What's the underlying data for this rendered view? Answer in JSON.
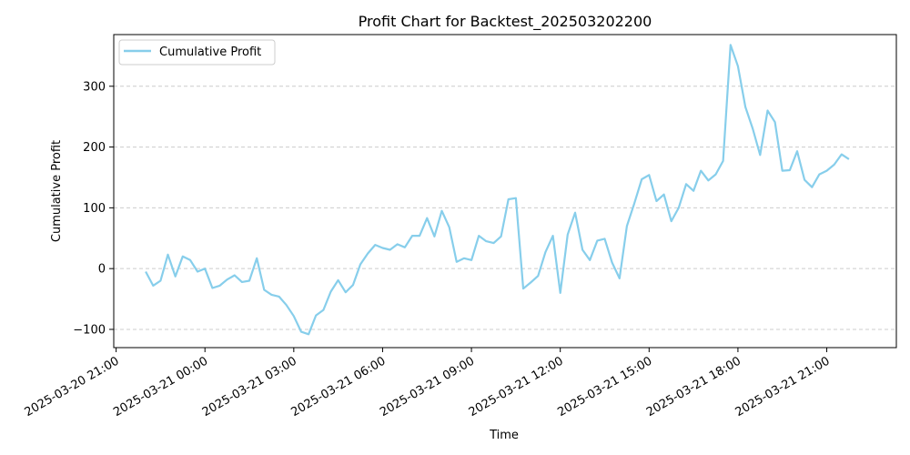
{
  "chart_data": {
    "type": "line",
    "title": "Profit Chart for Backtest_202503202200",
    "xlabel": "Time",
    "ylabel": "Cumulative Profit",
    "grid": "y-dashed",
    "legend_position": "top-left",
    "ylim": [
      -130,
      385
    ],
    "yticks": [
      -100,
      0,
      100,
      200,
      300
    ],
    "xticks": [
      {
        "label": "2025-03-20 21:00",
        "hours": -3
      },
      {
        "label": "2025-03-21 00:00",
        "hours": 0
      },
      {
        "label": "2025-03-21 03:00",
        "hours": 3
      },
      {
        "label": "2025-03-21 06:00",
        "hours": 6
      },
      {
        "label": "2025-03-21 09:00",
        "hours": 9
      },
      {
        "label": "2025-03-21 12:00",
        "hours": 12
      },
      {
        "label": "2025-03-21 15:00",
        "hours": 15
      },
      {
        "label": "2025-03-21 18:00",
        "hours": 18
      },
      {
        "label": "2025-03-21 21:00",
        "hours": 21
      }
    ],
    "xlim_hours": [
      -3.08,
      23.35
    ],
    "colors": {
      "line": "#87ceeb",
      "grid": "#cccccc",
      "axis": "#000000"
    },
    "series": [
      {
        "name": "Cumulative Profit",
        "points": [
          [
            -2.0,
            -5
          ],
          [
            -1.75,
            -28
          ],
          [
            -1.5,
            -20
          ],
          [
            -1.25,
            23
          ],
          [
            -1.0,
            -13
          ],
          [
            -0.75,
            20
          ],
          [
            -0.5,
            14
          ],
          [
            -0.25,
            -5
          ],
          [
            0.0,
            0
          ],
          [
            0.25,
            -32
          ],
          [
            0.5,
            -28
          ],
          [
            0.75,
            -18
          ],
          [
            1.0,
            -11
          ],
          [
            1.25,
            -22
          ],
          [
            1.5,
            -20
          ],
          [
            1.75,
            17
          ],
          [
            2.0,
            -35
          ],
          [
            2.25,
            -43
          ],
          [
            2.5,
            -46
          ],
          [
            2.75,
            -60
          ],
          [
            3.0,
            -78
          ],
          [
            3.25,
            -104
          ],
          [
            3.5,
            -108
          ],
          [
            3.75,
            -77
          ],
          [
            4.0,
            -68
          ],
          [
            4.25,
            -38
          ],
          [
            4.5,
            -19
          ],
          [
            4.75,
            -39
          ],
          [
            5.0,
            -27
          ],
          [
            5.25,
            7
          ],
          [
            5.5,
            25
          ],
          [
            5.75,
            39
          ],
          [
            6.0,
            34
          ],
          [
            6.25,
            31
          ],
          [
            6.5,
            40
          ],
          [
            6.75,
            35
          ],
          [
            7.0,
            54
          ],
          [
            7.25,
            54
          ],
          [
            7.5,
            83
          ],
          [
            7.75,
            53
          ],
          [
            8.0,
            95
          ],
          [
            8.25,
            68
          ],
          [
            8.5,
            11
          ],
          [
            8.75,
            17
          ],
          [
            9.0,
            14
          ],
          [
            9.25,
            54
          ],
          [
            9.5,
            45
          ],
          [
            9.75,
            42
          ],
          [
            10.0,
            53
          ],
          [
            10.25,
            114
          ],
          [
            10.5,
            116
          ],
          [
            10.75,
            -33
          ],
          [
            11.0,
            -23
          ],
          [
            11.25,
            -12
          ],
          [
            11.5,
            27
          ],
          [
            11.75,
            54
          ],
          [
            12.0,
            -40
          ],
          [
            12.25,
            56
          ],
          [
            12.5,
            92
          ],
          [
            12.75,
            31
          ],
          [
            13.0,
            14
          ],
          [
            13.25,
            46
          ],
          [
            13.5,
            49
          ],
          [
            13.75,
            10
          ],
          [
            14.0,
            -16
          ],
          [
            14.25,
            70
          ],
          [
            14.5,
            107
          ],
          [
            14.75,
            147
          ],
          [
            15.0,
            154
          ],
          [
            15.25,
            111
          ],
          [
            15.5,
            122
          ],
          [
            15.75,
            78
          ],
          [
            16.0,
            100
          ],
          [
            16.25,
            139
          ],
          [
            16.5,
            128
          ],
          [
            16.75,
            161
          ],
          [
            17.0,
            145
          ],
          [
            17.25,
            155
          ],
          [
            17.5,
            177
          ],
          [
            17.75,
            368
          ],
          [
            18.0,
            333
          ],
          [
            18.25,
            266
          ],
          [
            18.5,
            230
          ],
          [
            18.75,
            187
          ],
          [
            19.0,
            260
          ],
          [
            19.25,
            241
          ],
          [
            19.5,
            161
          ],
          [
            19.75,
            162
          ],
          [
            20.0,
            193
          ],
          [
            20.25,
            146
          ],
          [
            20.5,
            134
          ],
          [
            20.75,
            155
          ],
          [
            21.0,
            161
          ],
          [
            21.25,
            171
          ],
          [
            21.5,
            188
          ],
          [
            21.75,
            180
          ]
        ]
      }
    ]
  }
}
